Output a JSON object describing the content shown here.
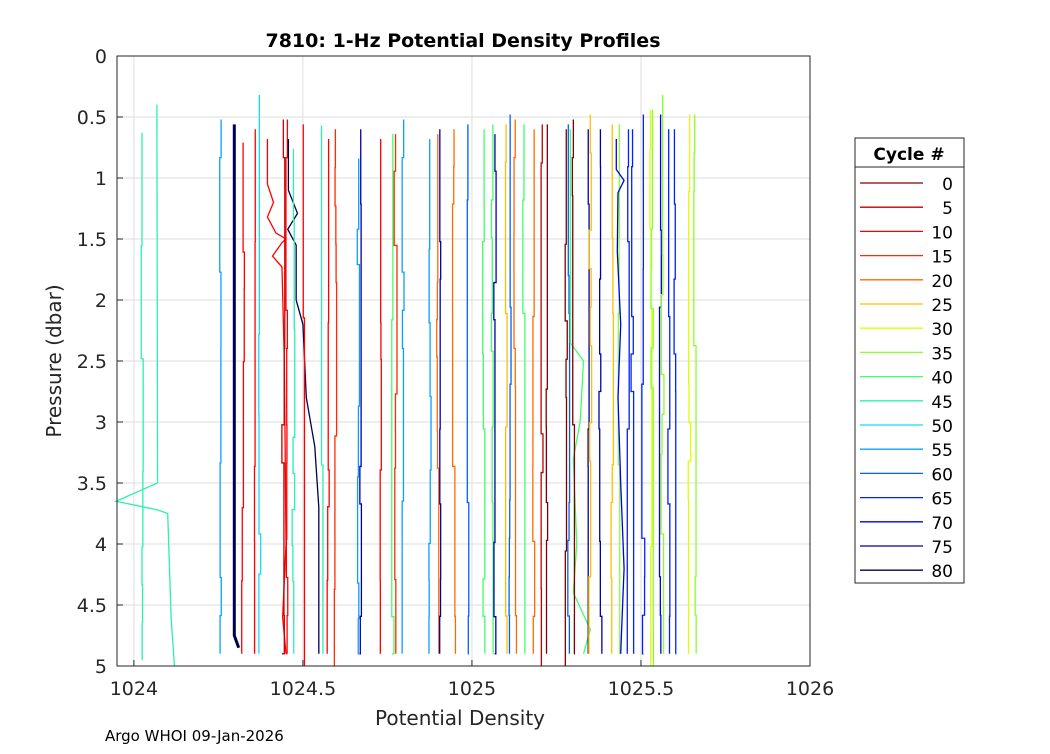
{
  "chart_data": {
    "type": "line",
    "title": "7810: 1-Hz Potential Density Profiles",
    "xlabel": "Potential Density",
    "ylabel": "Pressure (dbar)",
    "xlim": [
      1023.95,
      1026
    ],
    "ylim": [
      0,
      5
    ],
    "y_reversed": true,
    "grid": true,
    "xticks": [
      1024,
      1024.5,
      1025,
      1025.5,
      1026
    ],
    "xtick_labels": [
      "1024",
      "1024.5",
      "1025",
      "1025.5",
      "1026"
    ],
    "yticks": [
      0,
      0.5,
      1,
      1.5,
      2,
      2.5,
      3,
      3.5,
      4,
      4.5,
      5
    ],
    "ytick_labels": [
      "0",
      "0.5",
      "1",
      "1.5",
      "2",
      "2.5",
      "3",
      "3.5",
      "4",
      "4.5",
      "5"
    ],
    "legend": {
      "title": "Cycle #",
      "placement": "right-outside",
      "entries": [
        {
          "label": "0",
          "color": "#7f0000"
        },
        {
          "label": "5",
          "color": "#c00000"
        },
        {
          "label": "10",
          "color": "#ff0000"
        },
        {
          "label": "15",
          "color": "#ff2a00"
        },
        {
          "label": "20",
          "color": "#ff6a00"
        },
        {
          "label": "25",
          "color": "#ffbf00"
        },
        {
          "label": "30",
          "color": "#dfff00"
        },
        {
          "label": "35",
          "color": "#8aff2a"
        },
        {
          "label": "40",
          "color": "#40ff6a"
        },
        {
          "label": "45",
          "color": "#2af0b0"
        },
        {
          "label": "50",
          "color": "#15dcef"
        },
        {
          "label": "55",
          "color": "#0aa0ff"
        },
        {
          "label": "60",
          "color": "#0060ff"
        },
        {
          "label": "65",
          "color": "#0020ff"
        },
        {
          "label": "70",
          "color": "#0000ee"
        },
        {
          "label": "75",
          "color": "#0000a8"
        },
        {
          "label": "80",
          "color": "#000050"
        }
      ]
    },
    "series": [
      {
        "cycle": "45",
        "d": 1024.024,
        "p": [
          0.63,
          4.95
        ]
      },
      {
        "cycle": "45",
        "d": 1024.068,
        "p": [
          0.4,
          5.0
        ],
        "path": [
          [
            1024.068,
            0.4
          ],
          [
            1024.07,
            3.5
          ],
          [
            1023.947,
            3.65
          ],
          [
            1024.07,
            3.72
          ],
          [
            1024.1,
            3.75
          ],
          [
            1024.11,
            4.6
          ],
          [
            1024.12,
            5.0
          ]
        ]
      },
      {
        "cycle": "55",
        "d": 1024.258,
        "p": [
          0.52,
          4.9
        ]
      },
      {
        "cycle": "80",
        "d": 1024.297,
        "p": [
          0.56,
          4.85
        ],
        "w": 3,
        "path": [
          [
            1024.297,
            0.56
          ],
          [
            1024.297,
            4.75
          ],
          [
            1024.31,
            4.85
          ]
        ]
      },
      {
        "cycle": "10",
        "d": 1024.323,
        "p": [
          0.71,
          4.9
        ]
      },
      {
        "cycle": "10",
        "d": 1024.359,
        "p": [
          0.6,
          4.9
        ]
      },
      {
        "cycle": "50",
        "d": 1024.371,
        "p": [
          0.32,
          4.9
        ]
      },
      {
        "cycle": "10",
        "d": 1024.395,
        "p": [
          0.68,
          4.9
        ],
        "path": [
          [
            1024.395,
            0.68
          ],
          [
            1024.395,
            1.05
          ],
          [
            1024.413,
            1.2
          ],
          [
            1024.395,
            1.32
          ],
          [
            1024.42,
            1.45
          ],
          [
            1024.45,
            1.5
          ],
          [
            1024.438,
            1.53
          ],
          [
            1024.41,
            1.64
          ],
          [
            1024.438,
            1.73
          ],
          [
            1024.445,
            2.5
          ],
          [
            1024.45,
            4.0
          ],
          [
            1024.44,
            4.6
          ],
          [
            1024.45,
            4.9
          ]
        ]
      },
      {
        "cycle": "5",
        "d": 1024.442,
        "p": [
          0.52,
          4.9
        ]
      },
      {
        "cycle": "10",
        "d": 1024.454,
        "p": [
          0.52,
          4.9
        ]
      },
      {
        "cycle": "80",
        "d": 1024.457,
        "p": [
          0.68,
          4.9
        ],
        "path": [
          [
            1024.457,
            0.68
          ],
          [
            1024.457,
            1.1
          ],
          [
            1024.484,
            1.29
          ],
          [
            1024.455,
            1.42
          ],
          [
            1024.48,
            1.55
          ],
          [
            1024.48,
            2.0
          ],
          [
            1024.5,
            2.2
          ],
          [
            1024.51,
            2.8
          ],
          [
            1024.535,
            3.2
          ],
          [
            1024.547,
            3.7
          ],
          [
            1024.547,
            4.9
          ]
        ]
      },
      {
        "cycle": "45",
        "d": 1024.472,
        "p": [
          0.76,
          4.9
        ]
      },
      {
        "cycle": "10",
        "d": 1024.501,
        "p": [
          0.56,
          5.0
        ]
      },
      {
        "cycle": "45",
        "d": 1024.555,
        "p": [
          0.57,
          4.9
        ]
      },
      {
        "cycle": "10",
        "d": 1024.576,
        "p": [
          0.68,
          4.9
        ]
      },
      {
        "cycle": "15",
        "d": 1024.596,
        "p": [
          0.6,
          5.0
        ]
      },
      {
        "cycle": "55",
        "d": 1024.665,
        "p": [
          0.84,
          4.9
        ]
      },
      {
        "cycle": "75",
        "d": 1024.671,
        "p": [
          0.6,
          4.9
        ]
      },
      {
        "cycle": "10",
        "d": 1024.73,
        "p": [
          0.68,
          4.9
        ]
      },
      {
        "cycle": "40",
        "d": 1024.766,
        "p": [
          0.64,
          4.9
        ]
      },
      {
        "cycle": "15",
        "d": 1024.774,
        "p": [
          0.64,
          4.9
        ]
      },
      {
        "cycle": "55",
        "d": 1024.798,
        "p": [
          0.52,
          4.9
        ]
      },
      {
        "cycle": "55",
        "d": 1024.875,
        "p": [
          0.68,
          4.9
        ]
      },
      {
        "cycle": "20",
        "d": 1024.899,
        "p": [
          0.64,
          4.9
        ]
      },
      {
        "cycle": "75",
        "d": 1024.905,
        "p": [
          0.6,
          4.9
        ]
      },
      {
        "cycle": "20",
        "d": 1024.947,
        "p": [
          0.6,
          4.9
        ]
      },
      {
        "cycle": "60",
        "d": 1024.988,
        "p": [
          0.56,
          4.9
        ]
      },
      {
        "cycle": "40",
        "d": 1025.036,
        "p": [
          0.6,
          4.9
        ]
      },
      {
        "cycle": "40",
        "d": 1025.062,
        "p": [
          0.56,
          4.9
        ]
      },
      {
        "cycle": "75",
        "d": 1025.068,
        "p": [
          0.64,
          4.9
        ]
      },
      {
        "cycle": "25",
        "d": 1025.101,
        "p": [
          0.56,
          4.9
        ]
      },
      {
        "cycle": "60",
        "d": 1025.113,
        "p": [
          0.48,
          4.9
        ]
      },
      {
        "cycle": "20",
        "d": 1025.128,
        "p": [
          0.52,
          4.9
        ]
      },
      {
        "cycle": "40",
        "d": 1025.154,
        "p": [
          0.56,
          4.9
        ]
      },
      {
        "cycle": "20",
        "d": 1025.184,
        "p": [
          0.6,
          4.9
        ]
      },
      {
        "cycle": "5",
        "d": 1025.208,
        "p": [
          0.56,
          5.0
        ]
      },
      {
        "cycle": "0",
        "d": 1025.223,
        "p": [
          0.56,
          4.9
        ]
      },
      {
        "cycle": "0",
        "d": 1025.279,
        "p": [
          0.6,
          5.0
        ]
      },
      {
        "cycle": "60",
        "d": 1025.285,
        "p": [
          0.56,
          4.9
        ]
      },
      {
        "cycle": "40",
        "d": 1025.291,
        "p": [
          0.6,
          4.9
        ],
        "path": [
          [
            1025.291,
            0.6
          ],
          [
            1025.291,
            2.35
          ],
          [
            1025.33,
            2.5
          ],
          [
            1025.32,
            3.0
          ],
          [
            1025.3,
            3.3
          ],
          [
            1025.31,
            4.0
          ],
          [
            1025.3,
            4.4
          ],
          [
            1025.35,
            4.7
          ],
          [
            1025.33,
            4.9
          ]
        ]
      },
      {
        "cycle": "0",
        "d": 1025.3,
        "p": [
          0.52,
          4.9
        ]
      },
      {
        "cycle": "75",
        "d": 1025.344,
        "p": [
          0.6,
          4.9
        ]
      },
      {
        "cycle": "25",
        "d": 1025.35,
        "p": [
          0.48,
          4.9
        ]
      },
      {
        "cycle": "75",
        "d": 1025.38,
        "p": [
          0.6,
          4.9
        ]
      },
      {
        "cycle": "25",
        "d": 1025.415,
        "p": [
          0.56,
          4.9
        ]
      },
      {
        "cycle": "35",
        "d": 1025.436,
        "p": [
          0.56,
          4.9
        ]
      },
      {
        "cycle": "70",
        "d": 1025.442,
        "p": [
          0.68,
          4.9
        ],
        "path": [
          [
            1025.427,
            0.68
          ],
          [
            1025.427,
            0.93
          ],
          [
            1025.45,
            1.02
          ],
          [
            1025.432,
            1.12
          ],
          [
            1025.43,
            1.6
          ],
          [
            1025.44,
            2.2
          ],
          [
            1025.432,
            2.8
          ],
          [
            1025.44,
            3.5
          ],
          [
            1025.45,
            4.2
          ],
          [
            1025.44,
            4.9
          ]
        ]
      },
      {
        "cycle": "65",
        "d": 1025.463,
        "p": [
          0.6,
          4.9
        ]
      },
      {
        "cycle": "65",
        "d": 1025.475,
        "p": [
          0.6,
          4.9
        ]
      },
      {
        "cycle": "65",
        "d": 1025.507,
        "p": [
          0.48,
          4.9
        ]
      },
      {
        "cycle": "30",
        "d": 1025.528,
        "p": [
          0.44,
          5.0
        ]
      },
      {
        "cycle": "35",
        "d": 1025.534,
        "p": [
          0.44,
          5.0
        ]
      },
      {
        "cycle": "70",
        "d": 1025.558,
        "p": [
          0.48,
          4.9
        ]
      },
      {
        "cycle": "35",
        "d": 1025.564,
        "p": [
          0.32,
          4.9
        ]
      },
      {
        "cycle": "65",
        "d": 1025.582,
        "p": [
          0.6,
          4.9
        ]
      },
      {
        "cycle": "65",
        "d": 1025.599,
        "p": [
          0.6,
          4.9
        ]
      },
      {
        "cycle": "30",
        "d": 1025.644,
        "p": [
          0.48,
          4.9
        ]
      },
      {
        "cycle": "35",
        "d": 1025.659,
        "p": [
          0.48,
          4.9
        ]
      }
    ]
  },
  "footer": "Argo WHOI 09-Jan-2026"
}
